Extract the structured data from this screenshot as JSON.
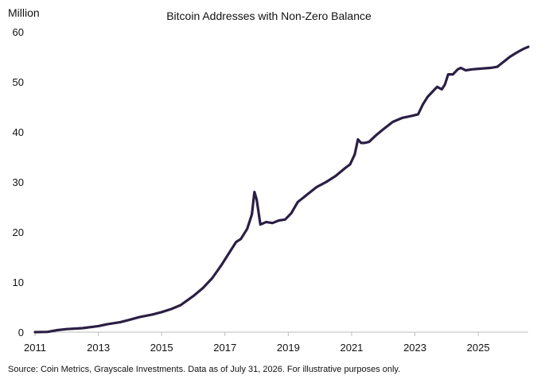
{
  "chart_data": {
    "type": "line",
    "title": "Bitcoin Addresses with Non-Zero Balance",
    "ylabel": "Million",
    "xlabel": "",
    "xlim": [
      2011.0,
      2026.58
    ],
    "ylim": [
      0,
      60
    ],
    "x_ticks": [
      "2011",
      "2013",
      "2015",
      "2017",
      "2019",
      "2021",
      "2023",
      "2025"
    ],
    "y_ticks": [
      "0",
      "10",
      "20",
      "30",
      "40",
      "50",
      "60"
    ],
    "grid": false,
    "legend": "none",
    "line_color": "#2b1f45",
    "series": [
      {
        "name": "",
        "x": [
          2011.0,
          2011.4,
          2011.7,
          2012.0,
          2012.5,
          2013.0,
          2013.3,
          2013.7,
          2014.0,
          2014.3,
          2014.7,
          2015.0,
          2015.3,
          2015.6,
          2015.8,
          2016.0,
          2016.3,
          2016.6,
          2016.9,
          2017.1,
          2017.35,
          2017.5,
          2017.7,
          2017.85,
          2017.93,
          2018.0,
          2018.12,
          2018.3,
          2018.5,
          2018.7,
          2018.9,
          2019.1,
          2019.3,
          2019.6,
          2019.9,
          2020.2,
          2020.5,
          2020.8,
          2020.95,
          2021.1,
          2021.2,
          2021.3,
          2021.4,
          2021.55,
          2021.8,
          2022.0,
          2022.3,
          2022.6,
          2022.9,
          2023.1,
          2023.25,
          2023.4,
          2023.55,
          2023.7,
          2023.85,
          2023.95,
          2024.05,
          2024.2,
          2024.35,
          2024.45,
          2024.6,
          2024.8,
          2025.0,
          2025.2,
          2025.4,
          2025.6,
          2025.8,
          2026.0,
          2026.2,
          2026.4,
          2026.58
        ],
        "values": [
          0.0,
          0.05,
          0.4,
          0.6,
          0.8,
          1.2,
          1.6,
          2.0,
          2.5,
          3.0,
          3.5,
          4.0,
          4.6,
          5.4,
          6.3,
          7.2,
          8.8,
          10.8,
          13.5,
          15.5,
          18.0,
          18.6,
          20.6,
          23.5,
          28.0,
          26.5,
          21.5,
          22.0,
          21.8,
          22.3,
          22.5,
          23.8,
          26.0,
          27.5,
          29.0,
          30.0,
          31.2,
          32.8,
          33.5,
          35.5,
          38.5,
          37.8,
          37.8,
          38.0,
          39.5,
          40.5,
          42.0,
          42.8,
          43.2,
          43.5,
          45.5,
          47.0,
          48.0,
          49.0,
          48.5,
          49.5,
          51.5,
          51.5,
          52.5,
          52.8,
          52.3,
          52.5,
          52.6,
          52.7,
          52.8,
          53.0,
          54.0,
          55.0,
          55.8,
          56.5,
          57.0
        ]
      }
    ],
    "source": "Source: Coin Metrics, Grayscale Investments. Data as of July 31, 2026. For illustrative purposes only."
  }
}
